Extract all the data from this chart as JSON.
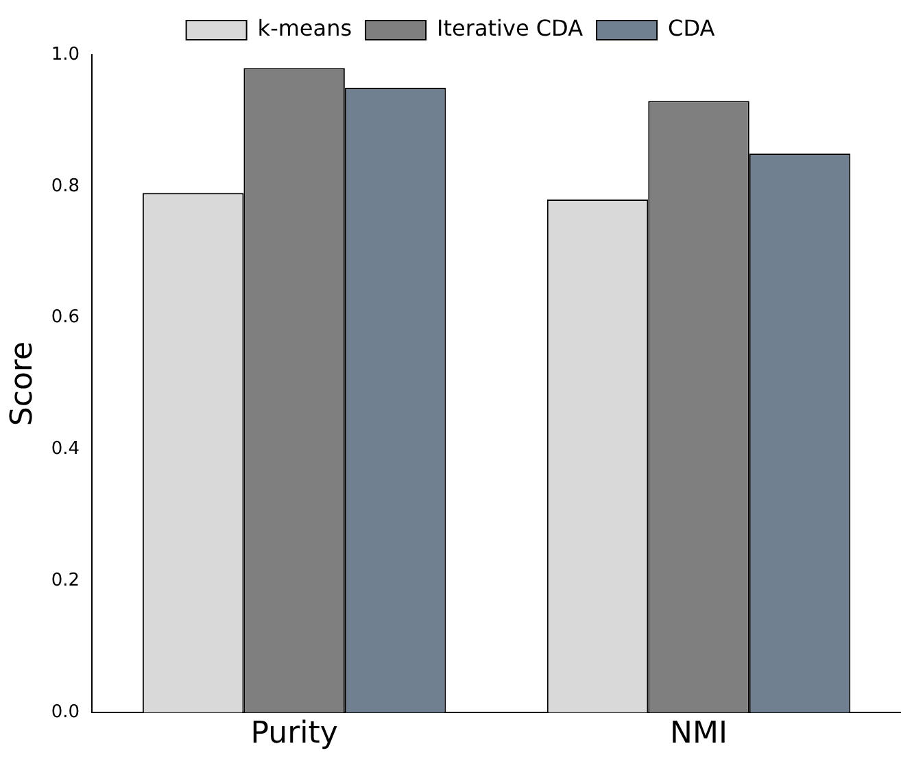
{
  "chart_data": {
    "type": "bar",
    "ylabel": "Score",
    "categories": [
      "Purity",
      "NMI"
    ],
    "series": [
      {
        "name": "k-means",
        "color": "#d9d9d9",
        "values": [
          0.79,
          0.78
        ]
      },
      {
        "name": "Iterative CDA",
        "color": "#7f7f7f",
        "values": [
          0.98,
          0.93
        ]
      },
      {
        "name": "CDA",
        "color": "#708090",
        "values": [
          0.95,
          0.85
        ]
      }
    ],
    "ylim": [
      0,
      1
    ],
    "yticks": [
      {
        "value": 0,
        "label": "0.0"
      },
      {
        "value": 0.2,
        "label": "0.2"
      },
      {
        "value": 0.4,
        "label": "0.4"
      },
      {
        "value": 0.6,
        "label": "0.6"
      },
      {
        "value": 0.8,
        "label": "0.8"
      },
      {
        "value": 1,
        "label": "1.0"
      }
    ],
    "grid": false,
    "legend": "top"
  }
}
